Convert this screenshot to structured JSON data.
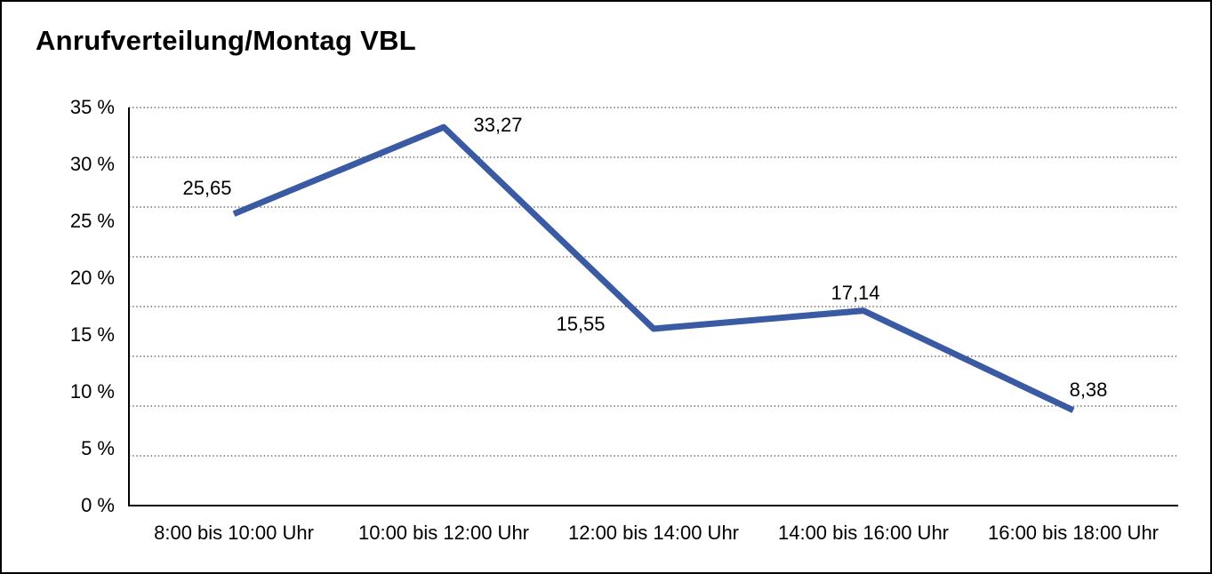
{
  "title": "Anrufverteilung/Montag VBL",
  "colors": {
    "line": "#3A5AA3",
    "axis": "#000000",
    "gridline": "#4a4a4a",
    "background": "#ffffff",
    "frame_border": "#000000",
    "text": "#000000"
  },
  "chart_data": {
    "type": "line",
    "title": "Anrufverteilung/Montag VBL",
    "categories": [
      "8:00 bis 10:00 Uhr",
      "10:00 bis 12:00 Uhr",
      "12:00 bis 14:00 Uhr",
      "14:00 bis 16:00 Uhr",
      "16:00 bis 18:00 Uhr"
    ],
    "series": [
      {
        "name": "Anrufverteilung Montag VBL",
        "values": [
          25.65,
          33.27,
          15.55,
          17.14,
          8.38
        ],
        "data_labels": [
          "25,65",
          "33,27",
          "15,55",
          "17,14",
          "8,38"
        ]
      }
    ],
    "xlabel": "",
    "ylabel": "",
    "y_ticks": [
      35,
      30,
      25,
      20,
      15,
      10,
      5,
      0
    ],
    "y_tick_labels": [
      "35 %",
      "30 %",
      "25 %",
      "20 %",
      "15 %",
      "10 %",
      "5 %",
      "0 %"
    ],
    "ylim": [
      0,
      35
    ],
    "grid": "horizontal-dotted",
    "legend_position": "none",
    "value_format": "percent, comma decimal separator",
    "marker": "none"
  }
}
